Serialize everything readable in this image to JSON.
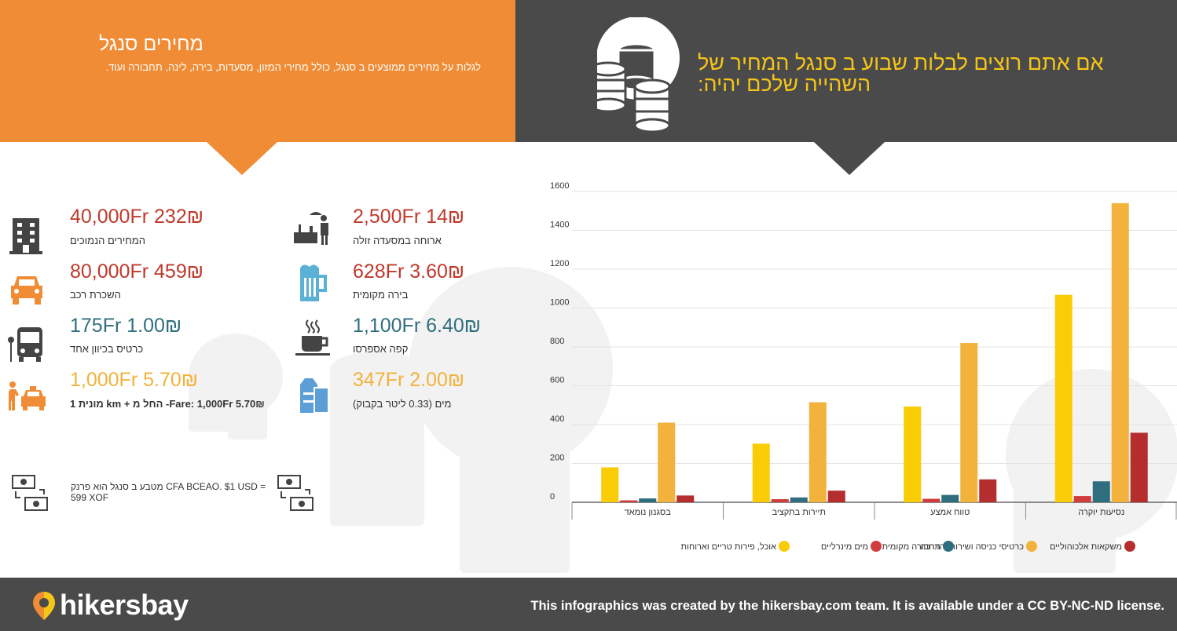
{
  "header": {
    "title": "מחירים סנגל",
    "subtitle": "לגלות על מחירים ממוצעים ב סנגל, כולל מחירי המזון, מסעדות, בירה, לינה, תחבורה ועוד.",
    "headline": "אם אתם רוצים לבלות שבוע ב סנגל המחיר של השהייה שלכם יהיה:"
  },
  "prices_left": [
    {
      "value": "40,000Fr 232₪",
      "label": "המחירים הנמוכים",
      "icon": "hotel-icon",
      "color": "#c0392b"
    },
    {
      "value": "80,000Fr 459₪",
      "label": "השכרת רכב",
      "icon": "car-icon",
      "color": "#c0392b"
    },
    {
      "value": "175Fr 1.00₪",
      "label": "כרטיס בכיוון אחד",
      "icon": "bus-icon",
      "color": "#2e6e7e"
    },
    {
      "value": "1,000Fr 5.70₪",
      "label": "מונית 1 km + החל מ -Fare: 1,000Fr 5.70₪",
      "icon": "taxi-icon",
      "color": "#f2b23c"
    }
  ],
  "prices_right": [
    {
      "value": "2,500Fr 14₪",
      "label": "ארוחה במסעדה זולה",
      "icon": "restaurant-icon",
      "color": "#c0392b"
    },
    {
      "value": "628Fr 3.60₪",
      "label": "בירה מקומית",
      "icon": "beer-icon",
      "color": "#c0392b"
    },
    {
      "value": "1,100Fr 6.40₪",
      "label": "קפה אספרסו",
      "icon": "coffee-icon",
      "color": "#2e6e7e"
    },
    {
      "value": "347Fr 2.00₪",
      "label": "מים (0.33 ליטר בקבוק)",
      "icon": "water-icon",
      "color": "#f2b23c"
    }
  ],
  "currency_note": "מטבע ב סנגל הוא פרנק CFA BCEAO. $1 USD = 599 XOF",
  "chart_data": {
    "type": "bar",
    "categories": [
      "בסגנון נומאד",
      "תיירות בתקציב",
      "טווח אמצע",
      "נסיעות יוקרה"
    ],
    "series": [
      {
        "name": "אוכל, פירות טריים וארוחות",
        "color": "#f9cc05",
        "values": [
          180,
          302,
          493,
          1068
        ]
      },
      {
        "name": "מים מינרליים",
        "color": "#d13c3c",
        "values": [
          10,
          16,
          18,
          32
        ]
      },
      {
        "name": "תחבורה מקומית",
        "color": "#2e6e7e",
        "values": [
          20,
          25,
          38,
          108
        ]
      },
      {
        "name": "כרטיסי כניסה ושירותי הדרכה",
        "color": "#f2b23c",
        "values": [
          410,
          515,
          820,
          1540
        ]
      },
      {
        "name": "משקאות אלכוהוליים",
        "color": "#b52d2d",
        "values": [
          35,
          60,
          118,
          358
        ]
      }
    ],
    "ylim": [
      0,
      1600
    ],
    "yticks": [
      0,
      200,
      400,
      600,
      800,
      1000,
      1200,
      1400,
      1600
    ],
    "grid": true,
    "legend": "bottom"
  },
  "footer": {
    "brand": "hikersbay",
    "license": "This infographics was created by the hikersbay.com team. It is available under a CC BY-NC-ND license."
  },
  "colors": {
    "orange": "#f08c35",
    "dark": "#4a4a4a",
    "headline": "#f5c518"
  }
}
